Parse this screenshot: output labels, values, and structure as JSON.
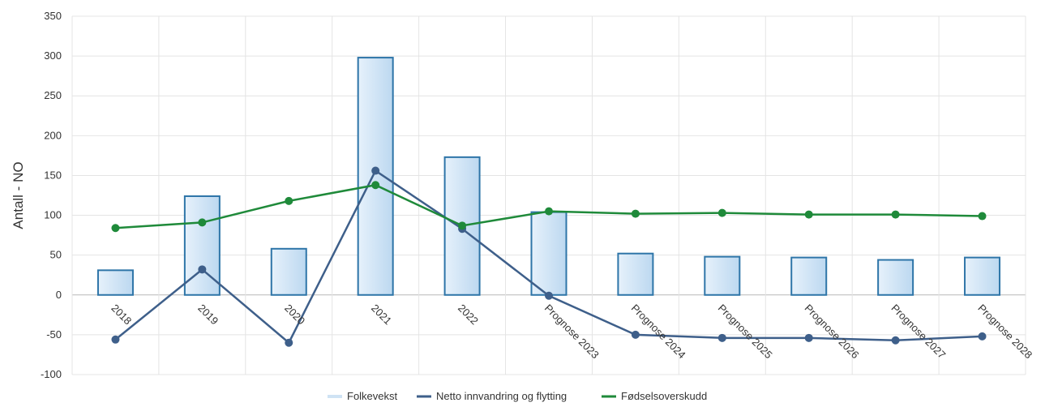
{
  "chart_data": {
    "type": "bar",
    "categories": [
      "2018",
      "2019",
      "2020",
      "2021",
      "2022",
      "Prognose 2023",
      "Prognose 2024",
      "Prognose 2025",
      "Prognose 2026",
      "Prognose 2027",
      "Prognose 2028"
    ],
    "series": [
      {
        "name": "Folkevekst",
        "type": "bar",
        "color": "#cfe3f4",
        "stroke": "#2e75a8",
        "values": [
          31,
          124,
          58,
          298,
          173,
          104,
          52,
          48,
          47,
          44,
          47
        ]
      },
      {
        "name": "Netto innvandring og flytting",
        "type": "line",
        "color": "#3e5f8a",
        "values": [
          -56,
          32,
          -60,
          156,
          83,
          -1,
          -50,
          -54,
          -54,
          -57,
          -52
        ]
      },
      {
        "name": "Fødselsoverskudd",
        "type": "line",
        "color": "#1f8a3a",
        "values": [
          84,
          91,
          118,
          138,
          87,
          105,
          102,
          103,
          101,
          101,
          99
        ]
      }
    ],
    "ylabel": "Antall - NO",
    "xlabel": "",
    "ylim": [
      -100,
      350
    ],
    "yticks": [
      -100,
      -50,
      0,
      50,
      100,
      150,
      200,
      250,
      300,
      350
    ],
    "grid": true,
    "legend": "bottom-center"
  }
}
